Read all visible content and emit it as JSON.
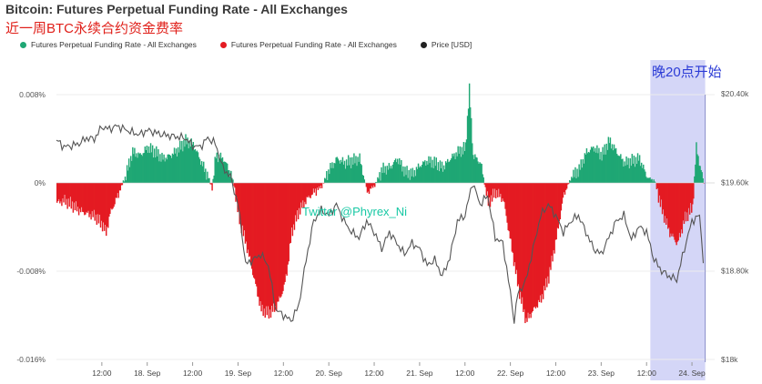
{
  "title": "Bitcoin: Futures Perpetual Funding Rate - All Exchanges",
  "subtitle": "近一周BTC永续合约资金费率",
  "annotation": "晚20点开始",
  "watermark_text": "Twitter @Phyrex_Ni",
  "legend": [
    {
      "label": "Futures Perpetual Funding Rate - All Exchanges",
      "color": "#1fa774",
      "icon": "dot-icon"
    },
    {
      "label": "Futures Perpetual Funding Rate - All Exchanges",
      "color": "#e41b22",
      "icon": "dot-icon"
    },
    {
      "label": "Price [USD]",
      "color": "#222222",
      "icon": "dot-icon"
    }
  ],
  "colors": {
    "positive": "#1fa774",
    "negative": "#e41b22",
    "price": "#555555",
    "highlight": "#c9ccf5"
  },
  "chart_data": {
    "type": "area",
    "x_range": [
      "17 Sep 00:00",
      "24 Sep 06:00"
    ],
    "x_ticks": [
      {
        "t": 12,
        "label": "12:00"
      },
      {
        "t": 24,
        "label": "18. Sep"
      },
      {
        "t": 36,
        "label": "12:00"
      },
      {
        "t": 48,
        "label": "19. Sep"
      },
      {
        "t": 60,
        "label": "12:00"
      },
      {
        "t": 72,
        "label": "20. Sep"
      },
      {
        "t": 84,
        "label": "12:00"
      },
      {
        "t": 96,
        "label": "21. Sep"
      },
      {
        "t": 108,
        "label": "12:00"
      },
      {
        "t": 120,
        "label": "22. Sep"
      },
      {
        "t": 132,
        "label": "12:00"
      },
      {
        "t": 144,
        "label": "23. Sep"
      },
      {
        "t": 156,
        "label": "12:00"
      },
      {
        "t": 168,
        "label": "24. Sep"
      }
    ],
    "y_left": {
      "label": "",
      "ticks": [
        "0.008%",
        "0%",
        "-0.008%",
        "-0.016%"
      ],
      "values": [
        0.008,
        0,
        -0.008,
        -0.016
      ],
      "range": [
        -0.016,
        0.0095
      ]
    },
    "y_right": {
      "label": "",
      "ticks": [
        "$20.40k",
        "$19.60k",
        "$18.80k",
        "$18k"
      ],
      "values": [
        20400,
        19600,
        18800,
        18000
      ],
      "range": [
        18000,
        20600
      ]
    },
    "highlight_band": {
      "from_t": 157,
      "to_t": 171.5
    },
    "series": [
      {
        "name": "Futures Perpetual Funding Rate - All Exchanges",
        "unit": "%",
        "x_hours": [
          0,
          2,
          4,
          6,
          8,
          10,
          12,
          13,
          14,
          16,
          18,
          20,
          22,
          24,
          26,
          28,
          30,
          32,
          34,
          36,
          38,
          40,
          41,
          42,
          44,
          46,
          47,
          48,
          50,
          52,
          54,
          56,
          58,
          60,
          61,
          62,
          64,
          66,
          68,
          70,
          72,
          74,
          76,
          78,
          80,
          82,
          84,
          86,
          88,
          90,
          92,
          94,
          96,
          98,
          100,
          102,
          104,
          106,
          108,
          109,
          110,
          112,
          114,
          116,
          118,
          120,
          122,
          124,
          126,
          128,
          130,
          132,
          134,
          136,
          138,
          140,
          142,
          144,
          146,
          148,
          150,
          152,
          154,
          156,
          158,
          160,
          162,
          164,
          166,
          168,
          169,
          170,
          171
        ],
        "values": [
          -0.0018,
          -0.0016,
          -0.002,
          -0.0025,
          -0.0028,
          -0.003,
          -0.0038,
          -0.0045,
          -0.0028,
          -0.0012,
          0.0005,
          0.0028,
          0.0025,
          0.0032,
          0.0028,
          0.0022,
          0.0025,
          0.003,
          0.0038,
          0.0035,
          0.002,
          0.0005,
          -0.0005,
          0.0025,
          0.0022,
          0.0008,
          -0.0005,
          -0.003,
          -0.0055,
          -0.0085,
          -0.0115,
          -0.0118,
          -0.0112,
          -0.0095,
          -0.0075,
          -0.0045,
          -0.0025,
          -0.0015,
          -0.0008,
          -0.0003,
          0.0012,
          0.0022,
          0.0018,
          0.002,
          0.0022,
          -0.0008,
          -0.0002,
          0.0012,
          0.0014,
          0.0022,
          0.001,
          0.0008,
          0.0016,
          0.002,
          0.0018,
          0.0014,
          0.0022,
          0.0028,
          0.0032,
          0.0085,
          0.0025,
          0.0018,
          -0.0018,
          -0.0008,
          -0.0015,
          -0.0055,
          -0.0095,
          -0.0125,
          -0.0115,
          -0.0105,
          -0.0085,
          -0.005,
          -0.001,
          0.0005,
          0.0012,
          0.0028,
          0.0032,
          0.0025,
          0.0038,
          0.0028,
          0.0018,
          0.002,
          0.0022,
          0.0005,
          0.0002,
          -0.0025,
          -0.0045,
          -0.0055,
          -0.0032,
          -0.0022,
          0.0032,
          0.0015,
          0.0
        ]
      },
      {
        "name": "Price [USD]",
        "unit": "USD",
        "x_hours": [
          0,
          2,
          4,
          6,
          8,
          10,
          12,
          14,
          16,
          18,
          20,
          22,
          24,
          26,
          28,
          30,
          32,
          34,
          36,
          38,
          40,
          42,
          44,
          46,
          48,
          49,
          50,
          52,
          54,
          56,
          58,
          60,
          62,
          64,
          66,
          68,
          70,
          72,
          74,
          76,
          78,
          80,
          82,
          84,
          86,
          88,
          90,
          92,
          94,
          96,
          98,
          100,
          102,
          104,
          106,
          108,
          110,
          112,
          114,
          116,
          118,
          120,
          121,
          122,
          124,
          126,
          128,
          130,
          132,
          134,
          136,
          138,
          140,
          142,
          144,
          146,
          148,
          150,
          152,
          154,
          156,
          158,
          160,
          162,
          164,
          166,
          168,
          170,
          171
        ],
        "values": [
          19980,
          19920,
          19930,
          19950,
          20000,
          19990,
          20100,
          20080,
          20110,
          20080,
          20050,
          20030,
          20070,
          20050,
          20030,
          20020,
          20010,
          20000,
          19930,
          19920,
          20000,
          19950,
          19730,
          19650,
          19400,
          19150,
          18860,
          18900,
          18950,
          18850,
          18450,
          18400,
          18350,
          18480,
          18900,
          19250,
          19350,
          19300,
          19400,
          19250,
          19150,
          19100,
          19250,
          19150,
          19000,
          19150,
          19050,
          18950,
          19050,
          19000,
          18850,
          18900,
          18750,
          18920,
          19250,
          19300,
          19600,
          19400,
          19480,
          19100,
          19050,
          18600,
          18350,
          18600,
          18700,
          19000,
          19300,
          19400,
          19300,
          19150,
          19250,
          19300,
          19150,
          19000,
          18950,
          19100,
          19250,
          19300,
          19080,
          19200,
          19150,
          18900,
          18800,
          18750,
          18720,
          19000,
          19250,
          19300,
          18900
        ]
      }
    ]
  }
}
